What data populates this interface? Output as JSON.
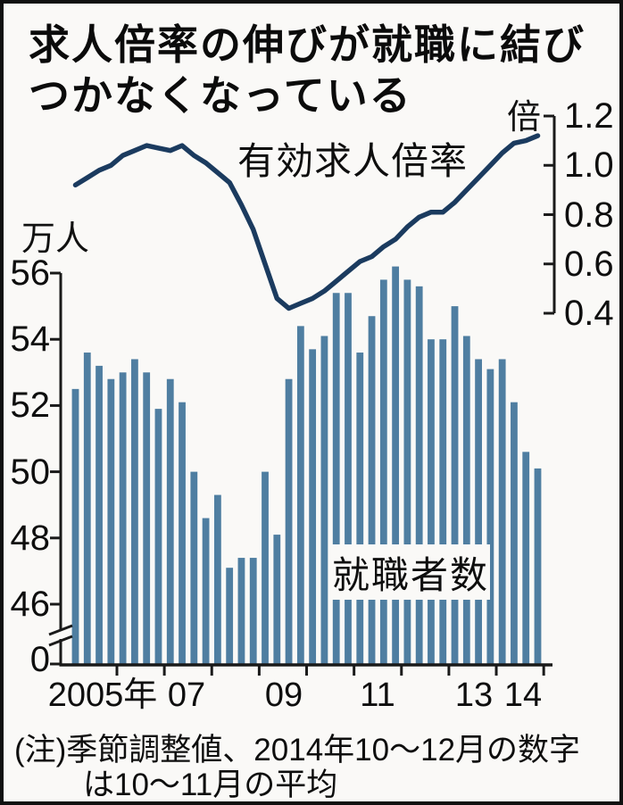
{
  "title": {
    "line1": "求人倍率の伸びが就職に結び",
    "line2": "つかなくなっている"
  },
  "labels": {
    "left_unit": "万人",
    "right_unit": "倍",
    "line_series": "有効求人倍率",
    "bar_series": "就職者数",
    "zero": "0"
  },
  "note": {
    "line1": "(注)季節調整値、2014年10～12月の数字",
    "line2": "は10～11月の平均"
  },
  "colors": {
    "bar": "#4f7ea1",
    "line": "#1b3b5f",
    "axis": "#1a1a1a",
    "background": "#faf9f7",
    "text": "#111111"
  },
  "chart_data": {
    "type": "combo",
    "title": "求人倍率の伸びが就職に結びつかなくなっている",
    "note": "(注)季節調整値、2014年10～12月の数字は10～11月の平均",
    "legend_position": "inline-annotations",
    "grid": false,
    "categories": [
      "2005Q1",
      "2005Q2",
      "2005Q3",
      "2005Q4",
      "2006Q1",
      "2006Q2",
      "2006Q3",
      "2006Q4",
      "2007Q1",
      "2007Q2",
      "2007Q3",
      "2007Q4",
      "2008Q1",
      "2008Q2",
      "2008Q3",
      "2008Q4",
      "2009Q1",
      "2009Q2",
      "2009Q3",
      "2009Q4",
      "2010Q1",
      "2010Q2",
      "2010Q3",
      "2010Q4",
      "2011Q1",
      "2011Q2",
      "2011Q3",
      "2011Q4",
      "2012Q1",
      "2012Q2",
      "2012Q3",
      "2012Q4",
      "2013Q1",
      "2013Q2",
      "2013Q3",
      "2013Q4",
      "2014Q1",
      "2014Q2",
      "2014Q3",
      "2014Q4"
    ],
    "series": [
      {
        "name": "就職者数",
        "type": "bar",
        "axis": "left",
        "unit": "万人",
        "values": [
          52.5,
          53.6,
          53.2,
          52.8,
          53.0,
          53.4,
          53.0,
          51.9,
          52.8,
          52.1,
          50.0,
          48.6,
          49.3,
          47.1,
          47.4,
          47.4,
          50.0,
          48.1,
          52.8,
          54.4,
          53.7,
          54.1,
          55.4,
          55.4,
          53.6,
          54.7,
          55.8,
          56.2,
          55.8,
          55.6,
          54.0,
          54.0,
          55.0,
          54.1,
          53.4,
          53.1,
          53.4,
          52.1,
          50.6,
          50.1
        ]
      },
      {
        "name": "有効求人倍率",
        "type": "line",
        "axis": "right",
        "unit": "倍",
        "values": [
          0.92,
          0.95,
          0.98,
          1.0,
          1.04,
          1.06,
          1.08,
          1.07,
          1.06,
          1.08,
          1.04,
          1.01,
          0.97,
          0.93,
          0.84,
          0.74,
          0.6,
          0.46,
          0.42,
          0.44,
          0.46,
          0.49,
          0.53,
          0.57,
          0.61,
          0.63,
          0.67,
          0.7,
          0.75,
          0.79,
          0.81,
          0.81,
          0.85,
          0.9,
          0.95,
          1.0,
          1.05,
          1.09,
          1.1,
          1.12
        ]
      }
    ],
    "left_axis": {
      "unit": "万人",
      "tick_labels": [
        "56",
        "54",
        "52",
        "50",
        "48",
        "46"
      ],
      "zero_label": "0",
      "axis_break": true,
      "range_shown": [
        46,
        56
      ]
    },
    "right_axis": {
      "unit": "倍",
      "tick_labels": [
        "1.2",
        "1.0",
        "0.8",
        "0.6",
        "0.4"
      ],
      "range_shown": [
        0.4,
        1.2
      ]
    },
    "x_axis": {
      "labels": [
        "2005年",
        "07",
        "09",
        "11",
        "13",
        "14"
      ],
      "tick_marks_at_year_starts": [
        2006,
        2007,
        2008,
        2009,
        2010,
        2011,
        2012,
        2013,
        2014,
        2015
      ]
    }
  }
}
